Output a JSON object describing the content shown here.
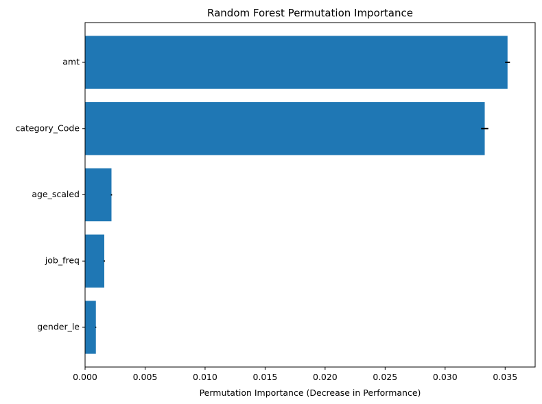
{
  "chart_data": {
    "type": "bar",
    "orientation": "horizontal",
    "title": "Random Forest Permutation Importance",
    "xlabel": "Permutation Importance (Decrease in Performance)",
    "ylabel": "",
    "categories": [
      "amt",
      "category_Code",
      "age_scaled",
      "job_freq",
      "gender_le"
    ],
    "values": [
      0.0352,
      0.0333,
      0.0022,
      0.0016,
      0.0009
    ],
    "errors": [
      0.0002,
      0.0003,
      5e-05,
      5e-05,
      3e-05
    ],
    "xlim": [
      0,
      0.0375
    ],
    "xticks": [
      0.0,
      0.005,
      0.01,
      0.015,
      0.02,
      0.025,
      0.03,
      0.035
    ],
    "xtick_labels": [
      "0.000",
      "0.005",
      "0.010",
      "0.015",
      "0.020",
      "0.025",
      "0.030",
      "0.035"
    ],
    "grid": false,
    "bar_color": "#1f77b4",
    "error_color": "#000000"
  }
}
